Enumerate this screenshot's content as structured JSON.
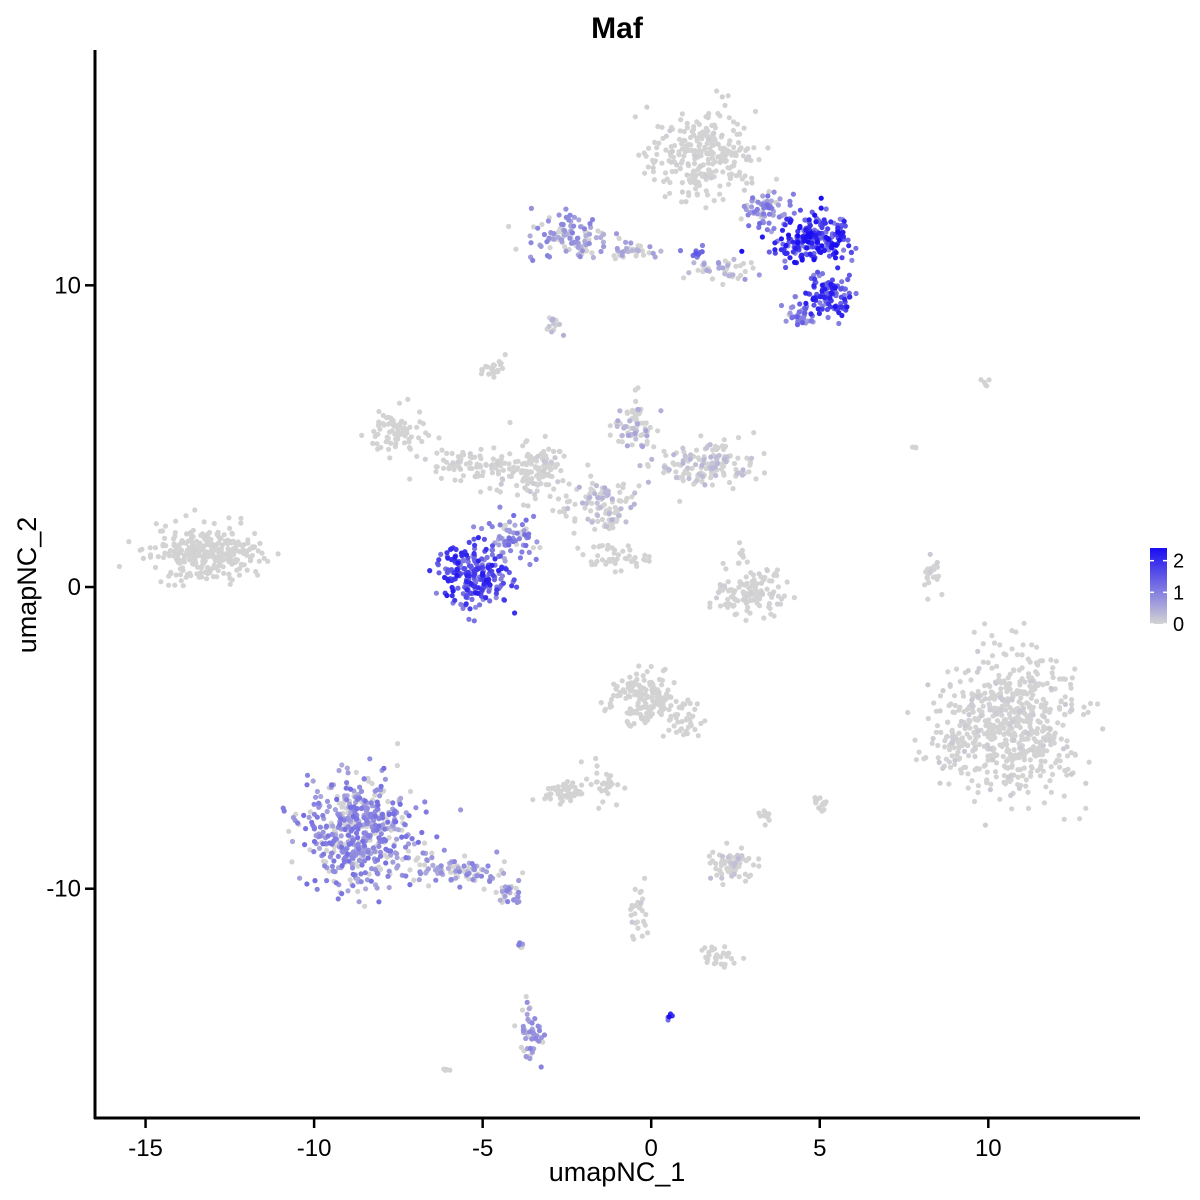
{
  "chart_data": {
    "type": "scatter",
    "title": "Maf",
    "xlabel": "umapNC_1",
    "ylabel": "umapNC_2",
    "xlim": [
      -16.5,
      14.5
    ],
    "ylim": [
      -17.6,
      17.8
    ],
    "x_ticks": [
      -15,
      -10,
      -5,
      0,
      5,
      10
    ],
    "x_tick_labels": [
      "-15",
      "-10",
      "-5",
      "0",
      "5",
      "10"
    ],
    "y_ticks": [
      -10,
      0,
      10
    ],
    "y_tick_labels": [
      "-10",
      "0",
      "10"
    ],
    "grid": false,
    "legend_placement": "right",
    "color_scale": {
      "low": "#d3d3d3",
      "high": "#1a0df2",
      "min": 0,
      "max": 2.4
    },
    "legend_ticks": [
      0,
      1,
      2
    ],
    "legend_tick_labels": [
      "0",
      "1",
      "2"
    ],
    "clusters": [
      {
        "cx": 1.5,
        "cy": 14.3,
        "rx": 1.4,
        "ry": 1.3,
        "n": 280,
        "expr": 0.05
      },
      {
        "cx": 4.9,
        "cy": 11.5,
        "rx": 1.0,
        "ry": 0.8,
        "n": 220,
        "expr": 1.7
      },
      {
        "cx": 5.3,
        "cy": 9.6,
        "rx": 0.6,
        "ry": 0.6,
        "n": 110,
        "expr": 1.6
      },
      {
        "cx": 4.4,
        "cy": 9.0,
        "rx": 0.4,
        "ry": 0.5,
        "n": 40,
        "expr": 1.0
      },
      {
        "cx": 3.4,
        "cy": 12.5,
        "rx": 0.6,
        "ry": 0.5,
        "n": 60,
        "expr": 0.9
      },
      {
        "cx": -2.4,
        "cy": 11.6,
        "rx": 1.0,
        "ry": 0.7,
        "n": 110,
        "expr": 0.7
      },
      {
        "cx": -0.7,
        "cy": 11.1,
        "rx": 0.8,
        "ry": 0.3,
        "n": 30,
        "expr": 0.5
      },
      {
        "cx": 2.2,
        "cy": 10.5,
        "rx": 1.1,
        "ry": 0.4,
        "n": 40,
        "expr": 0.5
      },
      {
        "cx": -2.9,
        "cy": 8.6,
        "rx": 0.2,
        "ry": 0.4,
        "n": 12,
        "expr": 0.3
      },
      {
        "cx": -4.6,
        "cy": 7.2,
        "rx": 0.3,
        "ry": 0.4,
        "n": 22,
        "expr": 0.0
      },
      {
        "cx": -7.6,
        "cy": 5.1,
        "rx": 0.8,
        "ry": 0.7,
        "n": 80,
        "expr": 0.0
      },
      {
        "cx": -5.2,
        "cy": 4.0,
        "rx": 1.4,
        "ry": 0.5,
        "n": 90,
        "expr": 0.05
      },
      {
        "cx": -3.6,
        "cy": 3.9,
        "rx": 0.8,
        "ry": 0.9,
        "n": 120,
        "expr": 0.1
      },
      {
        "cx": -1.6,
        "cy": 2.8,
        "rx": 1.1,
        "ry": 0.9,
        "n": 110,
        "expr": 0.3
      },
      {
        "cx": -0.5,
        "cy": 5.4,
        "rx": 0.6,
        "ry": 0.8,
        "n": 70,
        "expr": 0.4
      },
      {
        "cx": 1.6,
        "cy": 4.0,
        "rx": 1.3,
        "ry": 0.7,
        "n": 150,
        "expr": 0.25
      },
      {
        "cx": -1.2,
        "cy": 1.0,
        "rx": 1.0,
        "ry": 0.4,
        "n": 45,
        "expr": 0.0
      },
      {
        "cx": -5.3,
        "cy": 0.4,
        "rx": 1.0,
        "ry": 0.9,
        "n": 230,
        "expr": 1.55
      },
      {
        "cx": -4.1,
        "cy": 1.6,
        "rx": 0.7,
        "ry": 0.6,
        "n": 70,
        "expr": 0.9
      },
      {
        "cx": -13.2,
        "cy": 1.1,
        "rx": 1.5,
        "ry": 0.8,
        "n": 300,
        "expr": 0.02
      },
      {
        "cx": 3.0,
        "cy": -0.2,
        "rx": 1.0,
        "ry": 0.6,
        "n": 120,
        "expr": 0.05
      },
      {
        "cx": 2.7,
        "cy": 1.1,
        "rx": 0.2,
        "ry": 0.3,
        "n": 10,
        "expr": 0.0
      },
      {
        "cx": 8.3,
        "cy": 0.4,
        "rx": 0.25,
        "ry": 0.6,
        "n": 25,
        "expr": 0.1
      },
      {
        "cx": 10.6,
        "cy": -4.6,
        "rx": 1.8,
        "ry": 2.2,
        "n": 620,
        "expr": 0.08
      },
      {
        "cx": 9.0,
        "cy": -5.3,
        "rx": 0.5,
        "ry": 0.7,
        "n": 40,
        "expr": 0.1
      },
      {
        "cx": -0.3,
        "cy": -3.7,
        "rx": 0.9,
        "ry": 0.8,
        "n": 150,
        "expr": 0.02
      },
      {
        "cx": 0.9,
        "cy": -4.4,
        "rx": 0.6,
        "ry": 0.7,
        "n": 40,
        "expr": 0.0
      },
      {
        "cx": -1.4,
        "cy": -6.5,
        "rx": 0.5,
        "ry": 0.7,
        "n": 28,
        "expr": 0.0
      },
      {
        "cx": -2.6,
        "cy": -6.8,
        "rx": 0.5,
        "ry": 0.3,
        "n": 55,
        "expr": 0.0
      },
      {
        "cx": -8.6,
        "cy": -8.1,
        "rx": 1.4,
        "ry": 1.6,
        "n": 520,
        "expr": 0.85
      },
      {
        "cx": -5.8,
        "cy": -9.4,
        "rx": 1.4,
        "ry": 0.5,
        "n": 95,
        "expr": 0.7
      },
      {
        "cx": -4.2,
        "cy": -10.2,
        "rx": 0.4,
        "ry": 0.3,
        "n": 25,
        "expr": 0.7
      },
      {
        "cx": 2.4,
        "cy": -9.2,
        "rx": 0.6,
        "ry": 0.5,
        "n": 70,
        "expr": 0.2
      },
      {
        "cx": 3.4,
        "cy": -7.6,
        "rx": 0.2,
        "ry": 0.3,
        "n": 10,
        "expr": 0.0
      },
      {
        "cx": 5.0,
        "cy": -7.2,
        "rx": 0.2,
        "ry": 0.3,
        "n": 12,
        "expr": 0.05
      },
      {
        "cx": -0.4,
        "cy": -10.8,
        "rx": 0.3,
        "ry": 0.9,
        "n": 28,
        "expr": 0.1
      },
      {
        "cx": 2.1,
        "cy": -12.3,
        "rx": 0.5,
        "ry": 0.3,
        "n": 30,
        "expr": 0.0
      },
      {
        "cx": -3.6,
        "cy": -14.8,
        "rx": 0.3,
        "ry": 0.9,
        "n": 50,
        "expr": 0.7
      },
      {
        "cx": -3.9,
        "cy": -11.9,
        "rx": 0.1,
        "ry": 0.2,
        "n": 6,
        "expr": 0.8
      },
      {
        "cx": 0.6,
        "cy": -14.2,
        "rx": 0.08,
        "ry": 0.1,
        "n": 6,
        "expr": 2.0
      },
      {
        "cx": -6.1,
        "cy": -16.0,
        "rx": 0.1,
        "ry": 0.1,
        "n": 4,
        "expr": 0.0
      },
      {
        "cx": 10.0,
        "cy": 6.8,
        "rx": 0.3,
        "ry": 0.2,
        "n": 5,
        "expr": 0.0
      },
      {
        "cx": 7.8,
        "cy": 4.7,
        "rx": 0.1,
        "ry": 0.2,
        "n": 3,
        "expr": 0.0
      },
      {
        "cx": 1.2,
        "cy": 11.1,
        "rx": 0.3,
        "ry": 0.2,
        "n": 10,
        "expr": 1.3
      }
    ]
  }
}
